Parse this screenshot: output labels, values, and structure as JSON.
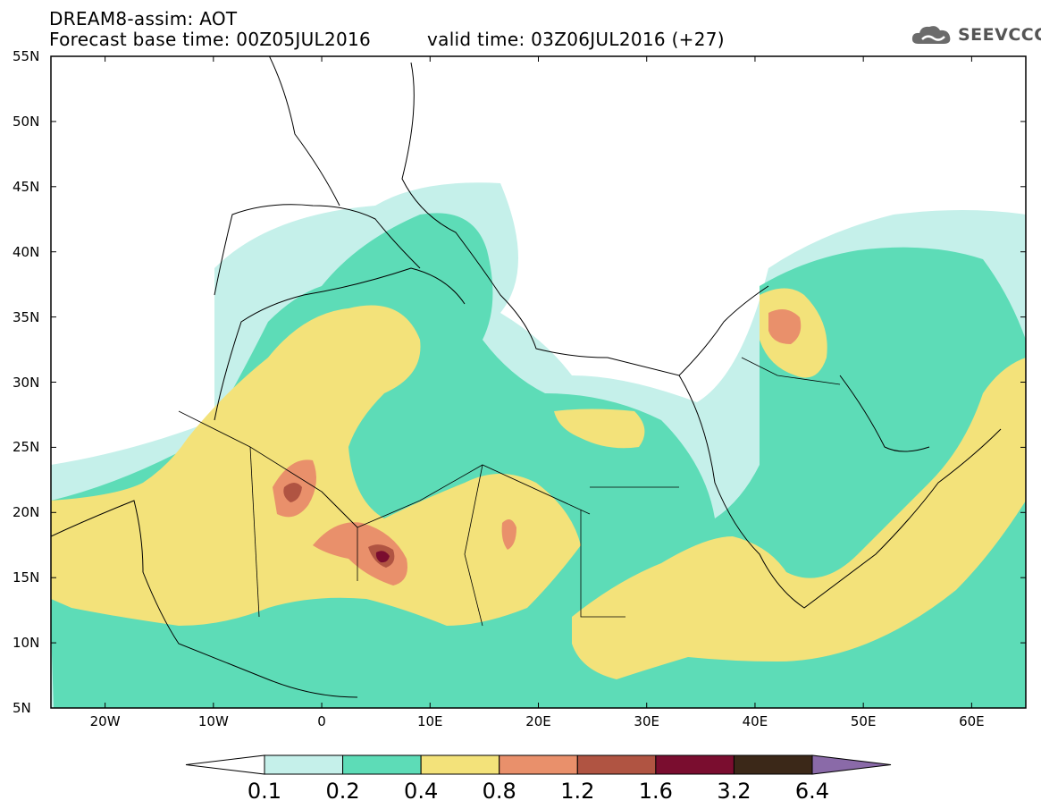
{
  "header": {
    "line1": "DREAM8-assim: AOT",
    "line2": "Forecast base time: 00Z05JUL2016",
    "valid": "valid time: 03Z06JUL2016 (+27)"
  },
  "logo": {
    "text": "SEEVCCC",
    "icon": "cloud-icon"
  },
  "axes": {
    "lat_labels": [
      "55N",
      "50N",
      "45N",
      "40N",
      "35N",
      "30N",
      "25N",
      "20N",
      "15N",
      "10N",
      "5N"
    ],
    "lon_labels": [
      "20W",
      "10W",
      "0",
      "10E",
      "20E",
      "30E",
      "40E",
      "50E",
      "60E"
    ],
    "lat_range": [
      5,
      55
    ],
    "lon_range": [
      -25,
      65
    ]
  },
  "colorbar": {
    "labels": [
      "0.1",
      "0.2",
      "0.4",
      "0.8",
      "1.2",
      "1.6",
      "3.2",
      "6.4"
    ],
    "colors": [
      "#c5f0ea",
      "#5ddcb7",
      "#f3e27a",
      "#e9906b",
      "#b05442",
      "#7a0d2f",
      "#3b2818"
    ],
    "under_color": "#ffffff",
    "over_color": "#8a6aa8"
  },
  "colors": {
    "frame": "#000000",
    "land_line": "#000000"
  }
}
